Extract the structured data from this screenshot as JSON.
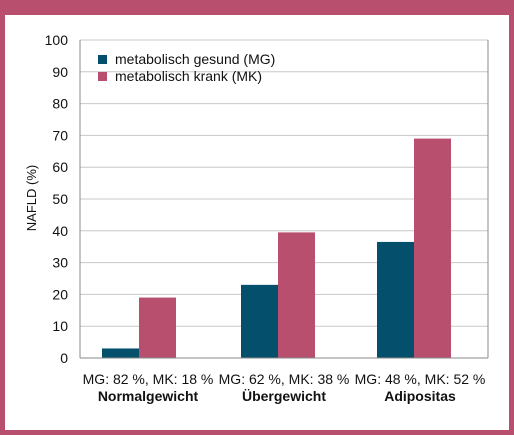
{
  "colors": {
    "frame": "#b84f6e",
    "series_mg": "#034f6c",
    "series_mk": "#b84f6e",
    "gridline": "#c8c8c8",
    "axis": "#888888"
  },
  "chart_data": {
    "type": "bar",
    "ylabel": "NAFLD (%)",
    "ylim": [
      0,
      100
    ],
    "yticks": [
      0,
      10,
      20,
      30,
      40,
      50,
      60,
      70,
      80,
      90,
      100
    ],
    "grid": true,
    "legend_position": "top-left",
    "categories": [
      "Normalgewicht",
      "Übergewicht",
      "Adipositas"
    ],
    "category_sublabels": [
      "MG: 82 %, MK: 18 %",
      "MG: 62 %, MK: 38 %",
      "MG: 48 %, MK: 52 %"
    ],
    "series": [
      {
        "name": "metabolisch gesund (MG)",
        "color": "#034f6c",
        "values": [
          3,
          23,
          36.5
        ]
      },
      {
        "name": "metabolisch krank (MK)",
        "color": "#b84f6e",
        "values": [
          19,
          39.5,
          69
        ]
      }
    ]
  }
}
